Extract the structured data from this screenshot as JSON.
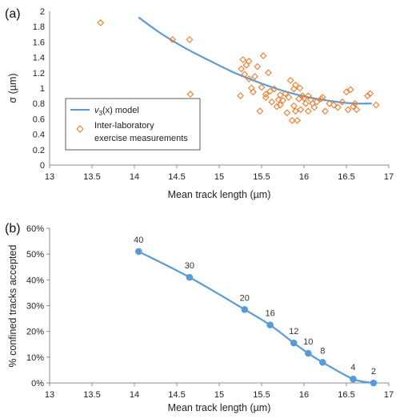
{
  "chart_data": [
    {
      "panel": "(a)",
      "type": "scatter",
      "xlabel": "Mean track length (µm)",
      "ylabel": "σ (µm)",
      "xlim": [
        13,
        17
      ],
      "ylim": [
        0,
        2
      ],
      "xticks": [
        "13",
        "13.5",
        "14",
        "14.5",
        "15",
        "15.5",
        "16",
        "16.5",
        "17"
      ],
      "yticks": [
        "0",
        "0.2",
        "0.4",
        "0.6",
        "0.8",
        "1",
        "1.2",
        "1.4",
        "1.6",
        "1.8",
        "2"
      ],
      "grid": false,
      "legend_position": "bottom-left",
      "line_color": "#5b9bd5",
      "marker_color": "#ed7d31",
      "series": [
        {
          "name": "v₃(x) model",
          "name_prefix": "v",
          "name_sub": "3",
          "name_suffix": "(x) model",
          "kind": "line",
          "x": [
            14.05,
            14.3,
            14.6,
            14.9,
            15.2,
            15.5,
            15.8,
            16.1,
            16.4,
            16.6,
            16.8
          ],
          "y": [
            1.92,
            1.72,
            1.52,
            1.35,
            1.19,
            1.06,
            0.95,
            0.87,
            0.82,
            0.8,
            0.8
          ]
        },
        {
          "name": "Inter-laboratory",
          "name_line2": "exercise measurements",
          "kind": "scatter",
          "x": [
            13.6,
            14.45,
            14.65,
            14.66,
            15.25,
            15.26,
            15.28,
            15.3,
            15.32,
            15.35,
            15.35,
            15.38,
            15.4,
            15.42,
            15.45,
            15.48,
            15.5,
            15.52,
            15.55,
            15.55,
            15.58,
            15.6,
            15.62,
            15.65,
            15.68,
            15.7,
            15.72,
            15.72,
            15.75,
            15.78,
            15.8,
            15.82,
            15.84,
            15.86,
            15.88,
            15.88,
            15.9,
            15.9,
            15.92,
            15.94,
            15.95,
            15.96,
            15.98,
            16.0,
            16.02,
            16.05,
            16.05,
            16.08,
            16.1,
            16.12,
            16.15,
            16.2,
            16.22,
            16.25,
            16.3,
            16.35,
            16.4,
            16.45,
            16.5,
            16.52,
            16.55,
            16.58,
            16.6,
            16.62,
            16.75,
            16.78,
            16.85
          ],
          "y": [
            1.85,
            1.63,
            1.63,
            0.92,
            0.9,
            1.25,
            1.37,
            1.18,
            1.3,
            1.35,
            1.12,
            1.0,
            0.95,
            1.15,
            1.28,
            0.7,
            1.01,
            1.42,
            0.92,
            0.88,
            1.2,
            0.96,
            0.82,
            0.99,
            0.76,
            0.85,
            0.91,
            0.78,
            0.84,
            0.93,
            0.68,
            0.88,
            1.1,
            0.58,
            0.99,
            0.77,
            1.04,
            0.7,
            0.58,
            0.86,
            1.0,
            0.72,
            0.9,
            0.87,
            0.8,
            0.9,
            0.7,
            0.85,
            0.8,
            0.75,
            0.82,
            0.86,
            0.88,
            0.7,
            0.8,
            0.78,
            0.75,
            0.82,
            0.95,
            0.72,
            0.98,
            0.76,
            0.8,
            0.72,
            0.9,
            0.93,
            0.78
          ]
        }
      ]
    },
    {
      "panel": "(b)",
      "type": "line",
      "xlabel": "Mean track length (µm)",
      "ylabel": "% confined tracks accepted",
      "xlim": [
        13,
        17
      ],
      "ylim": [
        0,
        60
      ],
      "xticks": [
        "13",
        "13.5",
        "14",
        "14.5",
        "15",
        "15.5",
        "16",
        "16.5",
        "17"
      ],
      "yticks": [
        "0%",
        "10%",
        "20%",
        "30%",
        "40%",
        "50%",
        "60%"
      ],
      "grid": false,
      "line_color": "#5b9bd5",
      "series": [
        {
          "kind": "line+markers",
          "x": [
            14.05,
            14.65,
            15.3,
            15.6,
            15.88,
            16.05,
            16.22,
            16.58,
            16.82
          ],
          "y": [
            51,
            41,
            28.5,
            22.5,
            15.5,
            11.5,
            8,
            1.5,
            0
          ],
          "labels": [
            "40",
            "30",
            "20",
            "16",
            "12",
            "10",
            "8",
            "4",
            "2"
          ]
        }
      ]
    }
  ]
}
